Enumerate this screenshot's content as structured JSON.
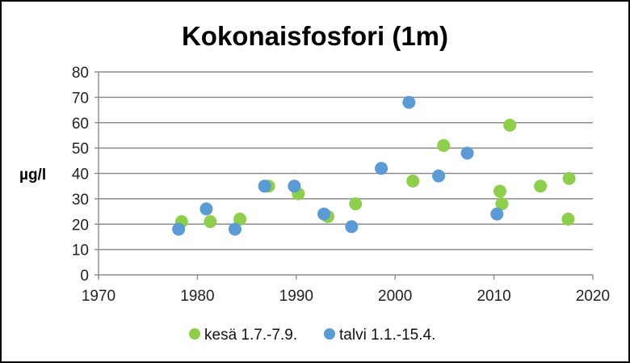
{
  "chart_data": {
    "type": "scatter",
    "title": "Kokonaisfosfori (1m)",
    "xlabel": "",
    "ylabel": "µg/l",
    "xlim": [
      1970,
      2020
    ],
    "ylim": [
      0,
      80
    ],
    "x_ticks": [
      1970,
      1980,
      1990,
      2000,
      2010,
      2020
    ],
    "y_ticks": [
      0,
      10,
      20,
      30,
      40,
      50,
      60,
      70,
      80
    ],
    "grid": {
      "horizontal": true,
      "vertical": false
    },
    "legend_position": "bottom",
    "series": [
      {
        "name": "kesä 1.7.-7.9.",
        "color": "#8DCF4A",
        "points": [
          {
            "x": 1978.4,
            "y": 21
          },
          {
            "x": 1981.3,
            "y": 21
          },
          {
            "x": 1984.3,
            "y": 22
          },
          {
            "x": 1987.2,
            "y": 35
          },
          {
            "x": 1990.2,
            "y": 32
          },
          {
            "x": 1993.2,
            "y": 23
          },
          {
            "x": 1996.0,
            "y": 28
          },
          {
            "x": 2001.8,
            "y": 37
          },
          {
            "x": 2004.9,
            "y": 51
          },
          {
            "x": 2010.6,
            "y": 33
          },
          {
            "x": 2010.8,
            "y": 28
          },
          {
            "x": 2011.6,
            "y": 59
          },
          {
            "x": 2014.7,
            "y": 35
          },
          {
            "x": 2017.6,
            "y": 38
          },
          {
            "x": 2017.5,
            "y": 22
          }
        ]
      },
      {
        "name": "talvi 1.1.-15.4.",
        "color": "#5B9BD5",
        "points": [
          {
            "x": 1978.1,
            "y": 18
          },
          {
            "x": 1980.9,
            "y": 26
          },
          {
            "x": 1983.8,
            "y": 18
          },
          {
            "x": 1986.8,
            "y": 35
          },
          {
            "x": 1989.8,
            "y": 35
          },
          {
            "x": 1992.8,
            "y": 24
          },
          {
            "x": 1995.6,
            "y": 19
          },
          {
            "x": 1998.6,
            "y": 42
          },
          {
            "x": 2001.4,
            "y": 68
          },
          {
            "x": 2004.4,
            "y": 39
          },
          {
            "x": 2007.3,
            "y": 48
          },
          {
            "x": 2010.3,
            "y": 24
          }
        ]
      }
    ]
  }
}
